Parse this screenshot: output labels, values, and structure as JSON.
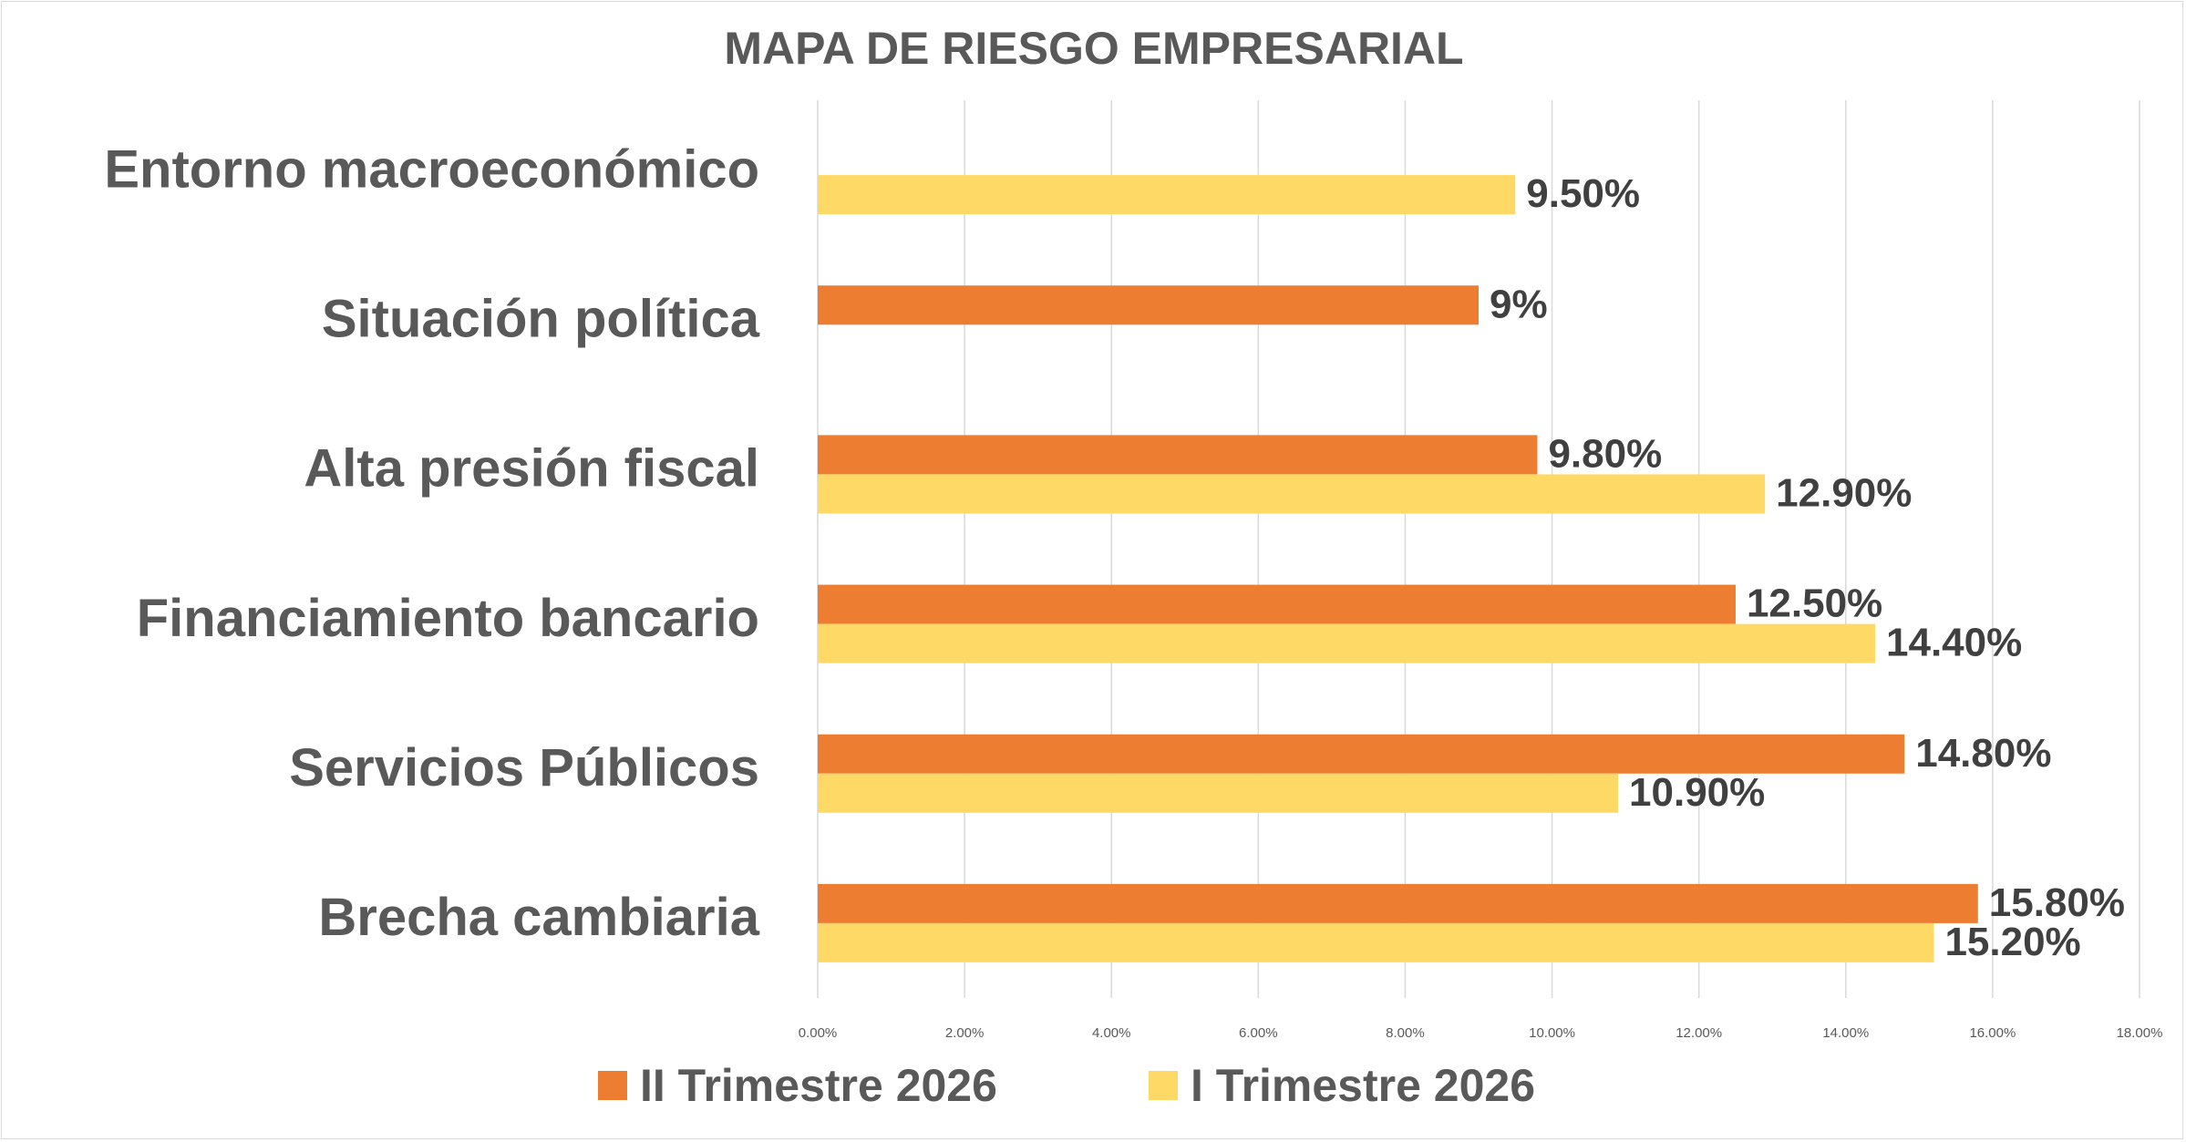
{
  "chart_data": {
    "type": "bar",
    "orientation": "horizontal",
    "title": "MAPA DE RIESGO EMPRESARIAL",
    "categories": [
      "Entorno macroeconómico",
      "Situación política",
      "Alta presión fiscal",
      "Financiamiento bancario",
      "Servicios Públicos",
      "Brecha cambiaria"
    ],
    "series": [
      {
        "name": "II Trimestre 2026",
        "color": "#ED7D31",
        "values": [
          null,
          9.0,
          9.8,
          12.5,
          14.8,
          15.8
        ],
        "labels": [
          "",
          "9%",
          "9.80%",
          "12.50%",
          "14.80%",
          "15.80%"
        ]
      },
      {
        "name": "I Trimestre 2026",
        "color": "#FFD966",
        "values": [
          9.5,
          null,
          12.9,
          14.4,
          10.9,
          15.2
        ],
        "labels": [
          "9.50%",
          "",
          "12.90%",
          "14.40%",
          "10.90%",
          "15.20%"
        ]
      }
    ],
    "xlim": [
      0,
      18
    ],
    "xticks": [
      "0.00%",
      "2.00%",
      "4.00%",
      "6.00%",
      "8.00%",
      "10.00%",
      "12.00%",
      "14.00%",
      "16.00%",
      "18.00%"
    ],
    "grid": true,
    "legend": "bottom"
  }
}
